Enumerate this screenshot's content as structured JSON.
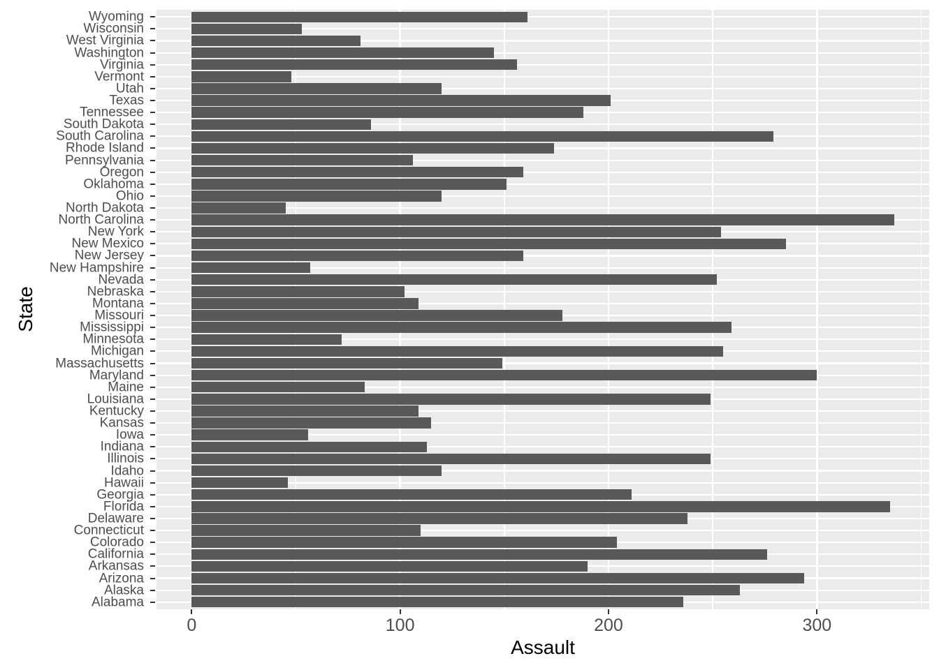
{
  "style": {
    "background": "#FFFFFF",
    "panel_background": "#EBEBEB",
    "gridline_color": "#FFFFFF",
    "bar_color": "#595959",
    "tick_label_color": "#4D4D4D",
    "axis_title_color": "#000000",
    "tick_mark_color": "#333333"
  },
  "chart_data": {
    "type": "bar",
    "orientation": "horizontal",
    "title": "",
    "xlabel": "Assault",
    "ylabel": "State",
    "legend": "none",
    "grid": "white major and minor gridlines on gray panel",
    "x_major_ticks": [
      0,
      100,
      200,
      300
    ],
    "x_tick_labels": [
      "0",
      "100",
      "200",
      "300"
    ],
    "x_minor_gridlines": [
      50,
      150,
      250,
      350
    ],
    "xlim": [
      -16.85,
      353.85
    ],
    "category_order": "alphabetical from bottom (Alabama) to top (Wyoming)",
    "categories": [
      "Alabama",
      "Alaska",
      "Arizona",
      "Arkansas",
      "California",
      "Colorado",
      "Connecticut",
      "Delaware",
      "Florida",
      "Georgia",
      "Hawaii",
      "Idaho",
      "Illinois",
      "Indiana",
      "Iowa",
      "Kansas",
      "Kentucky",
      "Louisiana",
      "Maine",
      "Maryland",
      "Massachusetts",
      "Michigan",
      "Minnesota",
      "Mississippi",
      "Missouri",
      "Montana",
      "Nebraska",
      "Nevada",
      "New Hampshire",
      "New Jersey",
      "New Mexico",
      "New York",
      "North Carolina",
      "North Dakota",
      "Ohio",
      "Oklahoma",
      "Oregon",
      "Pennsylvania",
      "Rhode Island",
      "South Carolina",
      "South Dakota",
      "Tennessee",
      "Texas",
      "Utah",
      "Vermont",
      "Virginia",
      "Washington",
      "West Virginia",
      "Wisconsin",
      "Wyoming"
    ],
    "values": [
      236,
      263,
      294,
      190,
      276,
      204,
      110,
      238,
      335,
      211,
      46,
      120,
      249,
      113,
      56,
      115,
      109,
      249,
      83,
      300,
      149,
      255,
      72,
      259,
      178,
      109,
      102,
      252,
      57,
      159,
      285,
      254,
      337,
      45,
      120,
      151,
      159,
      106,
      174,
      279,
      86,
      188,
      201,
      120,
      48,
      156,
      145,
      81,
      53,
      161
    ]
  }
}
